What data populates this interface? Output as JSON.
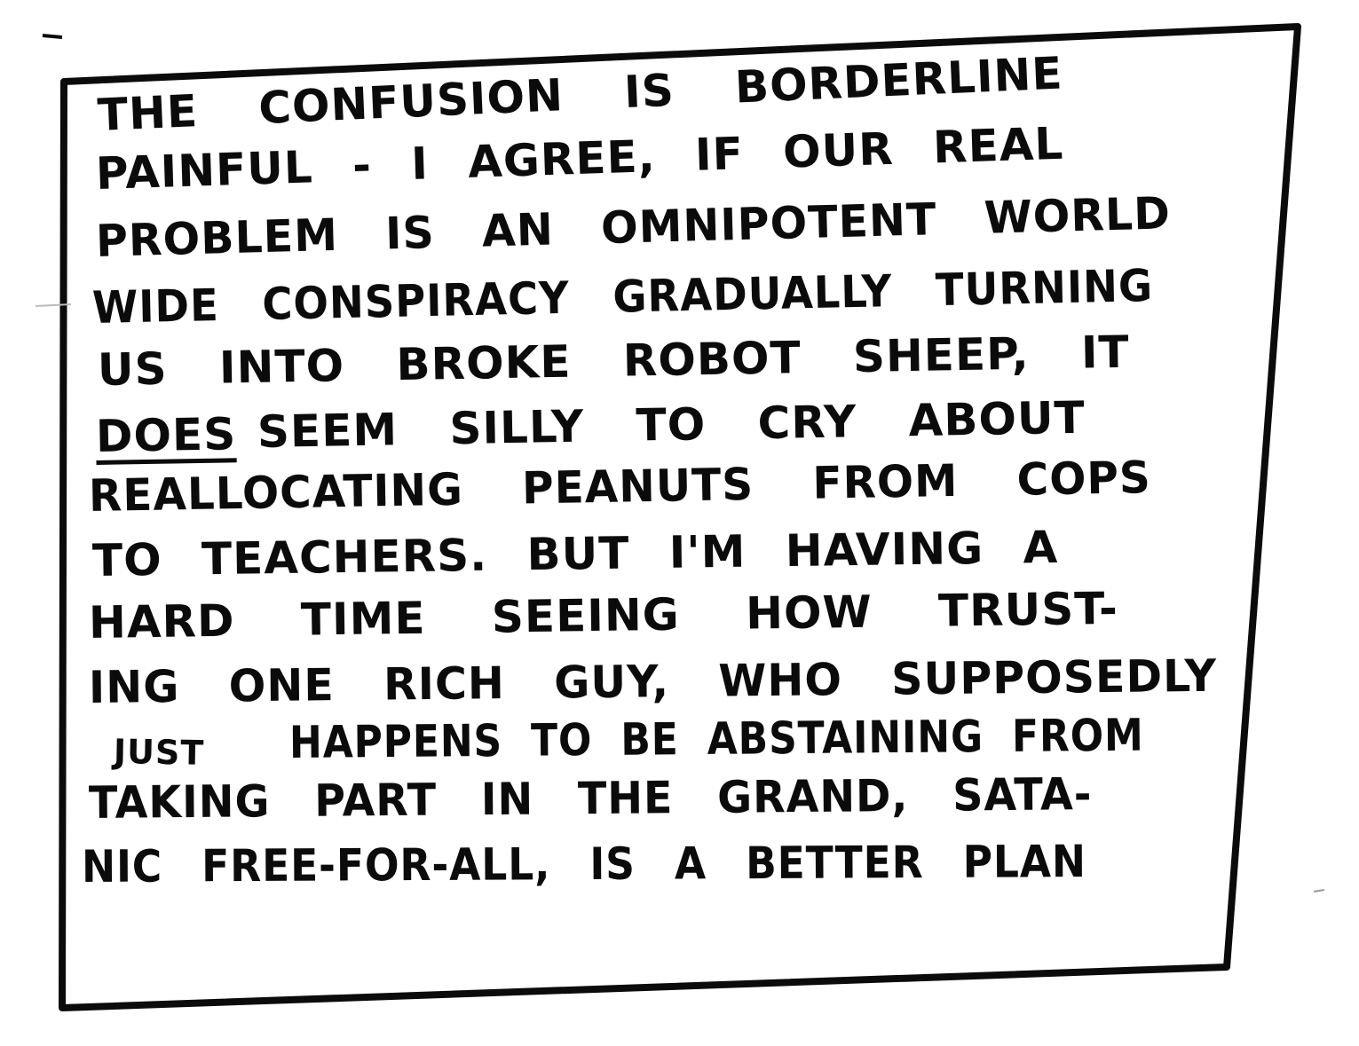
{
  "note": {
    "lines": [
      "THE CONFUSION IS BORDERLINE",
      "PAINFUL - I AGREE, IF OUR REAL",
      "PROBLEM IS AN OMNIPOTENT WORLD",
      "WIDE CONSPIRACY GRADUALLY TURNING",
      "US INTO BROKE ROBOT SHEEP, IT",
      "SEEM SILLY TO CRY ABOUT",
      "REALLOCATING PEANUTS FROM COPS",
      "TO TEACHERS. BUT I'M HAVING A",
      "HARD TIME SEEING HOW TRUST-",
      "ING ONE RICH GUY, WHO SUPPOSEDLY",
      "HAPPENS TO BE ABSTAINING FROM",
      "TAKING PART IN THE GRAND, SATA-",
      "NIC FREE-FOR-ALL, IS A BETTER PLAN"
    ],
    "emphasis_does": "DOES",
    "emphasis_just": "JUST"
  }
}
